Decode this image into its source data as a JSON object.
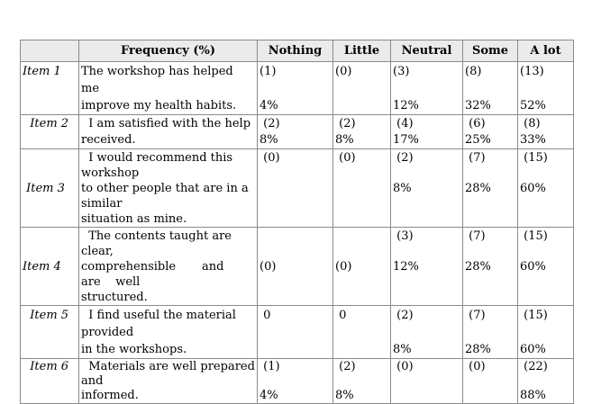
{
  "table": {
    "columns": [
      "",
      "Frequency (%)",
      "Nothing",
      "Little",
      "Neutral",
      "Some",
      "A lot"
    ],
    "rows": [
      {
        "item": "Item 1",
        "item_line": 1,
        "lines": 3,
        "text": "The workshop has helped\nme\nimprove my health habits.",
        "cells": [
          {
            "count": "(1)",
            "count_line": 1,
            "pct": "4%",
            "pct_line": 3
          },
          {
            "count": "(0)",
            "count_line": 1
          },
          {
            "count": "(3)",
            "count_line": 1,
            "pct": "12%",
            "pct_line": 3
          },
          {
            "count": "(8)",
            "count_line": 1,
            "pct": "32%",
            "pct_line": 3
          },
          {
            "count": "(13)",
            "count_line": 1,
            "pct": "52%",
            "pct_line": 3
          }
        ]
      },
      {
        "item": "  Item 2",
        "item_line": 1,
        "lines": 2,
        "text": "  I am satisfied with the help\nreceived.",
        "cells": [
          {
            "count": " (2)",
            "count_line": 1,
            "pct": "8%",
            "pct_line": 2
          },
          {
            "count": " (2)",
            "count_line": 1,
            "pct": "8%",
            "pct_line": 2
          },
          {
            "count": " (4)",
            "count_line": 1,
            "pct": "17%",
            "pct_line": 2
          },
          {
            "count": " (6)",
            "count_line": 1,
            "pct": "25%",
            "pct_line": 2
          },
          {
            "count": " (8)",
            "count_line": 1,
            "pct": "33%",
            "pct_line": 2
          }
        ]
      },
      {
        "item": " Item 3",
        "item_line": 3,
        "lines": 5,
        "text": "  I would recommend this\nworkshop\nto other people that are in a\nsimilar\nsituation as mine.",
        "cells": [
          {
            "count": " (0)",
            "count_line": 1
          },
          {
            "count": " (0)",
            "count_line": 1
          },
          {
            "count": " (2)",
            "count_line": 1,
            "pct": "8%",
            "pct_line": 3
          },
          {
            "count": " (7)",
            "count_line": 1,
            "pct": "28%",
            "pct_line": 3
          },
          {
            "count": " (15)",
            "count_line": 1,
            "pct": "60%",
            "pct_line": 3
          }
        ]
      },
      {
        "item": "Item 4",
        "item_line": 3,
        "lines": 5,
        "text": "  The contents taught are\nclear,\ncomprehensible       and\nare    well\nstructured.",
        "cells": [
          {
            "count": "(0)",
            "count_line": 3
          },
          {
            "count": "(0)",
            "count_line": 3
          },
          {
            "count": " (3)",
            "count_line": 1,
            "pct": "12%",
            "pct_line": 3
          },
          {
            "count": " (7)",
            "count_line": 1,
            "pct": "28%",
            "pct_line": 3
          },
          {
            "count": " (15)",
            "count_line": 1,
            "pct": "60%",
            "pct_line": 3
          }
        ]
      },
      {
        "item": "  Item 5",
        "item_line": 1,
        "lines": 3,
        "text": "  I find useful the material\nprovided\nin the workshops.",
        "cells": [
          {
            "count": " 0",
            "count_line": 1
          },
          {
            "count": " 0",
            "count_line": 1
          },
          {
            "count": " (2)",
            "count_line": 1,
            "pct": "8%",
            "pct_line": 3
          },
          {
            "count": " (7)",
            "count_line": 1,
            "pct": "28%",
            "pct_line": 3
          },
          {
            "count": " (15)",
            "count_line": 1,
            "pct": "60%",
            "pct_line": 3
          }
        ]
      },
      {
        "item": "  Item 6",
        "item_line": 1,
        "lines": 3,
        "text": "  Materials are well prepared\nand\ninformed.",
        "cells": [
          {
            "count": " (1)",
            "count_line": 1,
            "pct": "4%",
            "pct_line": 3
          },
          {
            "count": " (2)",
            "count_line": 1,
            "pct": "8%",
            "pct_line": 3
          },
          {
            "count": " (0)",
            "count_line": 1
          },
          {
            "count": " (0)",
            "count_line": 1
          },
          {
            "count": " (22)",
            "count_line": 1,
            "pct": "88%",
            "pct_line": 3
          }
        ]
      }
    ]
  }
}
